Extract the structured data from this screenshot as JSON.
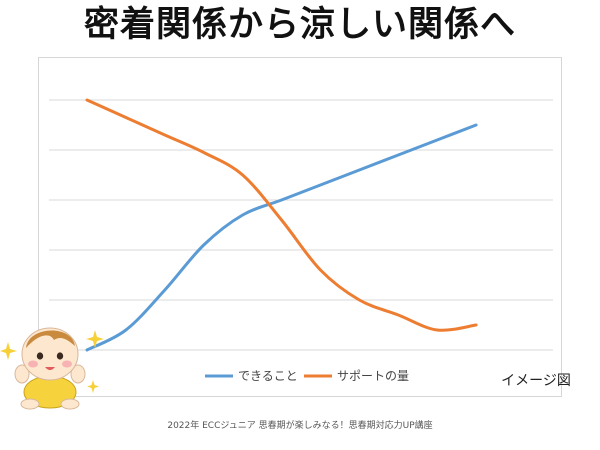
{
  "title": "密着関係から涼しい関係へ",
  "image_note": "イメージ図",
  "footer": "2022年 ECCジュニア 思春期が楽しみなる！思春期対応力UP講座",
  "chart_data": {
    "type": "line",
    "x": [
      0,
      1,
      2,
      3,
      4,
      5,
      6,
      7,
      8,
      9,
      10,
      11
    ],
    "xlim": [
      0,
      11
    ],
    "ylim": [
      0,
      5
    ],
    "grid": true,
    "legend_position": "bottom",
    "series": [
      {
        "name": "できること",
        "color": "#5b9bd5",
        "values": [
          0,
          0.4,
          1.2,
          2.1,
          2.7,
          3.0,
          3.3,
          3.6,
          3.9,
          4.2,
          4.5,
          4.5
        ]
      },
      {
        "name": "サポートの量",
        "color": "#ed7d31",
        "values": [
          5.0,
          4.65,
          4.3,
          3.95,
          3.5,
          2.6,
          1.6,
          1.0,
          0.7,
          0.4,
          0.5,
          0.5
        ]
      }
    ]
  }
}
